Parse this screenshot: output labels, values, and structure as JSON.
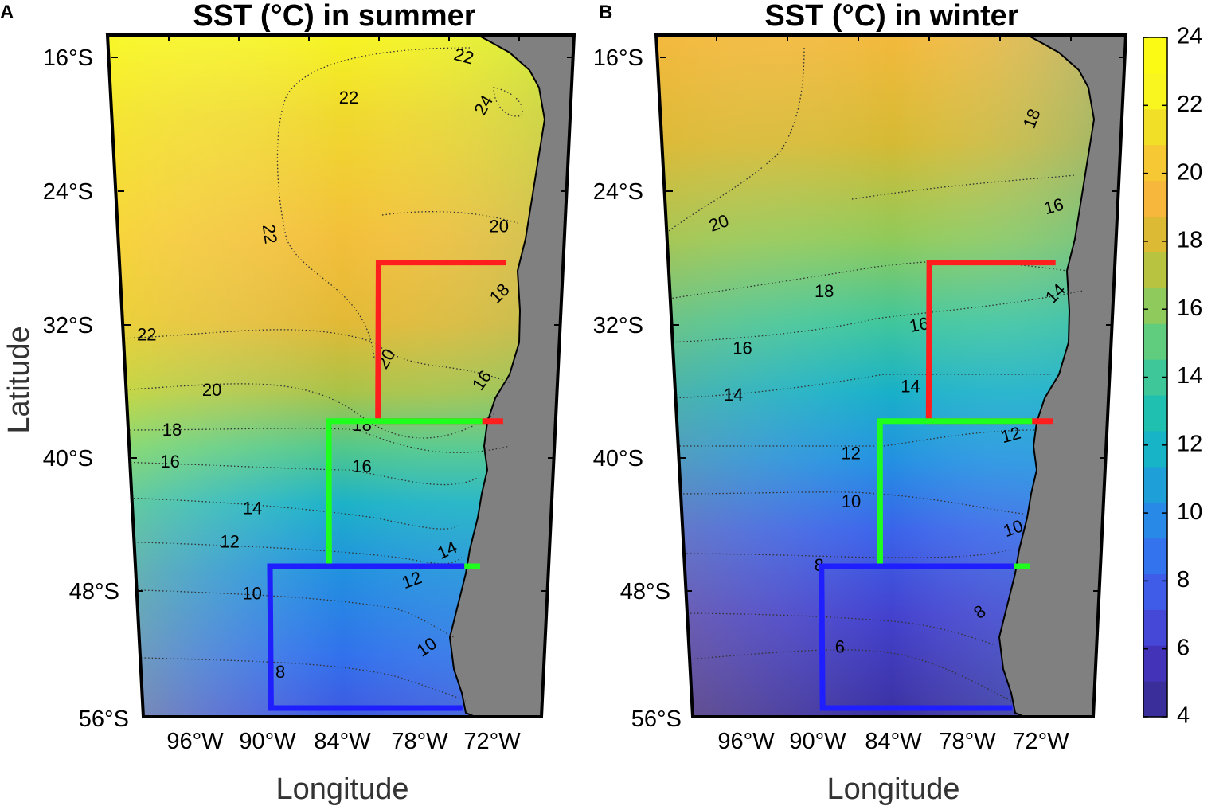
{
  "figure": {
    "axis_labels": {
      "x": "Longitude",
      "y": "Latitude"
    },
    "lat_ticks": [
      "16°S",
      "24°S",
      "32°S",
      "40°S",
      "48°S",
      "56°S"
    ],
    "lon_ticks": [
      "96°W",
      "90°W",
      "84°W",
      "78°W",
      "72°W"
    ],
    "colorbar": {
      "min": 4,
      "max": 24,
      "ticks": [
        "24",
        "22",
        "20",
        "18",
        "16",
        "14",
        "12",
        "10",
        "8",
        "6",
        "4"
      ],
      "colors": [
        "#3a2e9a",
        "#4333b8",
        "#4547d6",
        "#3f5ce8",
        "#3373ee",
        "#2989e6",
        "#1f9fd8",
        "#17b3c6",
        "#20c0b0",
        "#3ec899",
        "#60cc7e",
        "#8ecb5c",
        "#b8c43f",
        "#dcba33",
        "#f6b73c",
        "#f5c834",
        "#f1de27",
        "#f8f51f",
        "#fafa14"
      ]
    },
    "panels": [
      {
        "letter": "A",
        "title": "SST (°C) in summer",
        "contour_labels": [
          {
            "text": "22",
            "lat": 16.0,
            "lon": 74.5,
            "rot": 15
          },
          {
            "text": "24",
            "lat": 18.9,
            "lon": 72.8,
            "rot": -60
          },
          {
            "text": "22",
            "lat": 18.5,
            "lon": 83.5,
            "rot": 0
          },
          {
            "text": "22",
            "lat": 26.6,
            "lon": 89.9,
            "rot": 82
          },
          {
            "text": "20",
            "lat": 26.2,
            "lon": 71.5,
            "rot": 0
          },
          {
            "text": "18",
            "lat": 30.2,
            "lon": 71.3,
            "rot": -45
          },
          {
            "text": "22",
            "lat": 32.7,
            "lon": 99.8,
            "rot": 0
          },
          {
            "text": "20",
            "lat": 34.1,
            "lon": 80.4,
            "rot": -60
          },
          {
            "text": "16",
            "lat": 35.4,
            "lon": 72.6,
            "rot": -55
          },
          {
            "text": "20",
            "lat": 36.0,
            "lon": 94.6,
            "rot": 0
          },
          {
            "text": "18",
            "lat": 38.4,
            "lon": 97.9,
            "rot": 0
          },
          {
            "text": "18",
            "lat": 38.1,
            "lon": 82.4,
            "rot": 0
          },
          {
            "text": "16",
            "lat": 40.3,
            "lon": 98.1,
            "rot": 0
          },
          {
            "text": "16",
            "lat": 40.6,
            "lon": 82.4,
            "rot": 0
          },
          {
            "text": "14",
            "lat": 43.1,
            "lon": 91.4,
            "rot": 0
          },
          {
            "text": "12",
            "lat": 45.1,
            "lon": 93.3,
            "rot": 0
          },
          {
            "text": "14",
            "lat": 45.6,
            "lon": 75.3,
            "rot": -25
          },
          {
            "text": "12",
            "lat": 47.4,
            "lon": 78.2,
            "rot": -20
          },
          {
            "text": "10",
            "lat": 48.2,
            "lon": 91.5,
            "rot": 0
          },
          {
            "text": "10",
            "lat": 51.4,
            "lon": 76.9,
            "rot": -35
          },
          {
            "text": "8",
            "lat": 52.9,
            "lon": 89.2,
            "rot": 0
          }
        ]
      },
      {
        "letter": "B",
        "title": "SST (°C) in winter",
        "contour_labels": [
          {
            "text": "18",
            "lat": 19.7,
            "lon": 72.9,
            "rot": -70
          },
          {
            "text": "16",
            "lat": 25.0,
            "lon": 71.1,
            "rot": -15
          },
          {
            "text": "20",
            "lat": 26.0,
            "lon": 98.0,
            "rot": -20
          },
          {
            "text": "14",
            "lat": 30.2,
            "lon": 70.8,
            "rot": -45
          },
          {
            "text": "18",
            "lat": 30.1,
            "lon": 89.6,
            "rot": 0
          },
          {
            "text": "16",
            "lat": 32.1,
            "lon": 81.9,
            "rot": -10
          },
          {
            "text": "16",
            "lat": 33.5,
            "lon": 96.3,
            "rot": 0
          },
          {
            "text": "14",
            "lat": 35.8,
            "lon": 82.6,
            "rot": 0
          },
          {
            "text": "14",
            "lat": 36.3,
            "lon": 97.1,
            "rot": 0
          },
          {
            "text": "12",
            "lat": 38.7,
            "lon": 74.3,
            "rot": -15
          },
          {
            "text": "12",
            "lat": 39.8,
            "lon": 87.5,
            "rot": 0
          },
          {
            "text": "10",
            "lat": 42.7,
            "lon": 87.5,
            "rot": 0
          },
          {
            "text": "10",
            "lat": 44.3,
            "lon": 74.0,
            "rot": -20
          },
          {
            "text": "8",
            "lat": 46.5,
            "lon": 90.2,
            "rot": 0
          },
          {
            "text": "8",
            "lat": 49.3,
            "lon": 76.7,
            "rot": -35
          },
          {
            "text": "6",
            "lat": 51.4,
            "lon": 88.5,
            "rot": 0
          }
        ]
      }
    ],
    "regions": [
      {
        "color": "#ff1e1e",
        "lat_min": 28.3,
        "lat_max": 37.8,
        "lon_west": 81.1,
        "lon_east": 70.9
      },
      {
        "color": "#1eff1e",
        "lat_min": 37.8,
        "lat_max": 46.5,
        "lon_west": 85.1,
        "lon_east": 72.6
      },
      {
        "color": "#1e1eff",
        "lat_min": 46.5,
        "lat_max": 55.0,
        "lon_west": 90.0,
        "lon_east": 73.9
      }
    ]
  }
}
